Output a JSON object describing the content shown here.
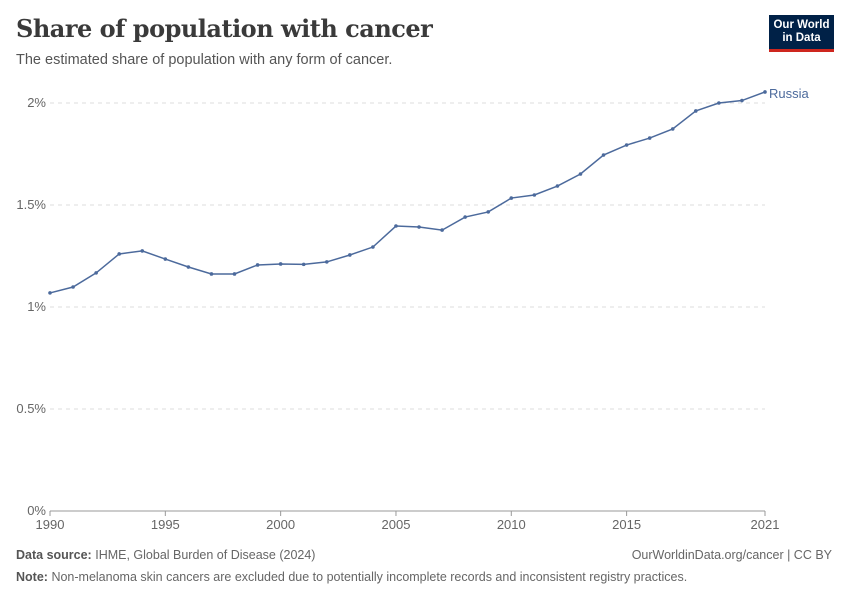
{
  "header": {
    "title": "Share of population with cancer",
    "subtitle": "The estimated share of population with any form of cancer.",
    "logo": "Our World in Data"
  },
  "footer": {
    "source_label": "Data source:",
    "source": "IHME, Global Burden of Disease (2024)",
    "url": "OurWorldinData.org/cancer | CC BY",
    "note_label": "Note:",
    "note": "Non-melanoma skin cancers are excluded due to potentially incomplete records and inconsistent registry practices."
  },
  "colors": {
    "series": "#4c6a9c",
    "grid": "#dddddd"
  },
  "chart_data": {
    "type": "line",
    "title": "Share of population with cancer",
    "ylim": [
      0,
      2.05
    ],
    "y_ticks": [
      {
        "v": 0,
        "label": "0%"
      },
      {
        "v": 0.5,
        "label": "0.5%"
      },
      {
        "v": 1,
        "label": "1%"
      },
      {
        "v": 1.5,
        "label": "1.5%"
      },
      {
        "v": 2,
        "label": "2%"
      }
    ],
    "x_ticks": [
      1990,
      1995,
      2000,
      2005,
      2010,
      2015,
      2021
    ],
    "grid": "horizontal dashed",
    "x": [
      1990,
      1991,
      1992,
      1993,
      1994,
      1995,
      1996,
      1997,
      1998,
      1999,
      2000,
      2001,
      2002,
      2003,
      2004,
      2005,
      2006,
      2007,
      2008,
      2009,
      2010,
      2011,
      2012,
      2013,
      2014,
      2015,
      2016,
      2017,
      2018,
      2019,
      2020,
      2021
    ],
    "series": [
      {
        "name": "Russia",
        "values": [
          1.069,
          1.098,
          1.167,
          1.26,
          1.275,
          1.235,
          1.196,
          1.162,
          1.162,
          1.206,
          1.211,
          1.209,
          1.221,
          1.255,
          1.294,
          1.397,
          1.392,
          1.377,
          1.441,
          1.466,
          1.534,
          1.549,
          1.593,
          1.652,
          1.745,
          1.794,
          1.828,
          1.873,
          1.961,
          2.0,
          2.012,
          2.054
        ]
      }
    ]
  }
}
